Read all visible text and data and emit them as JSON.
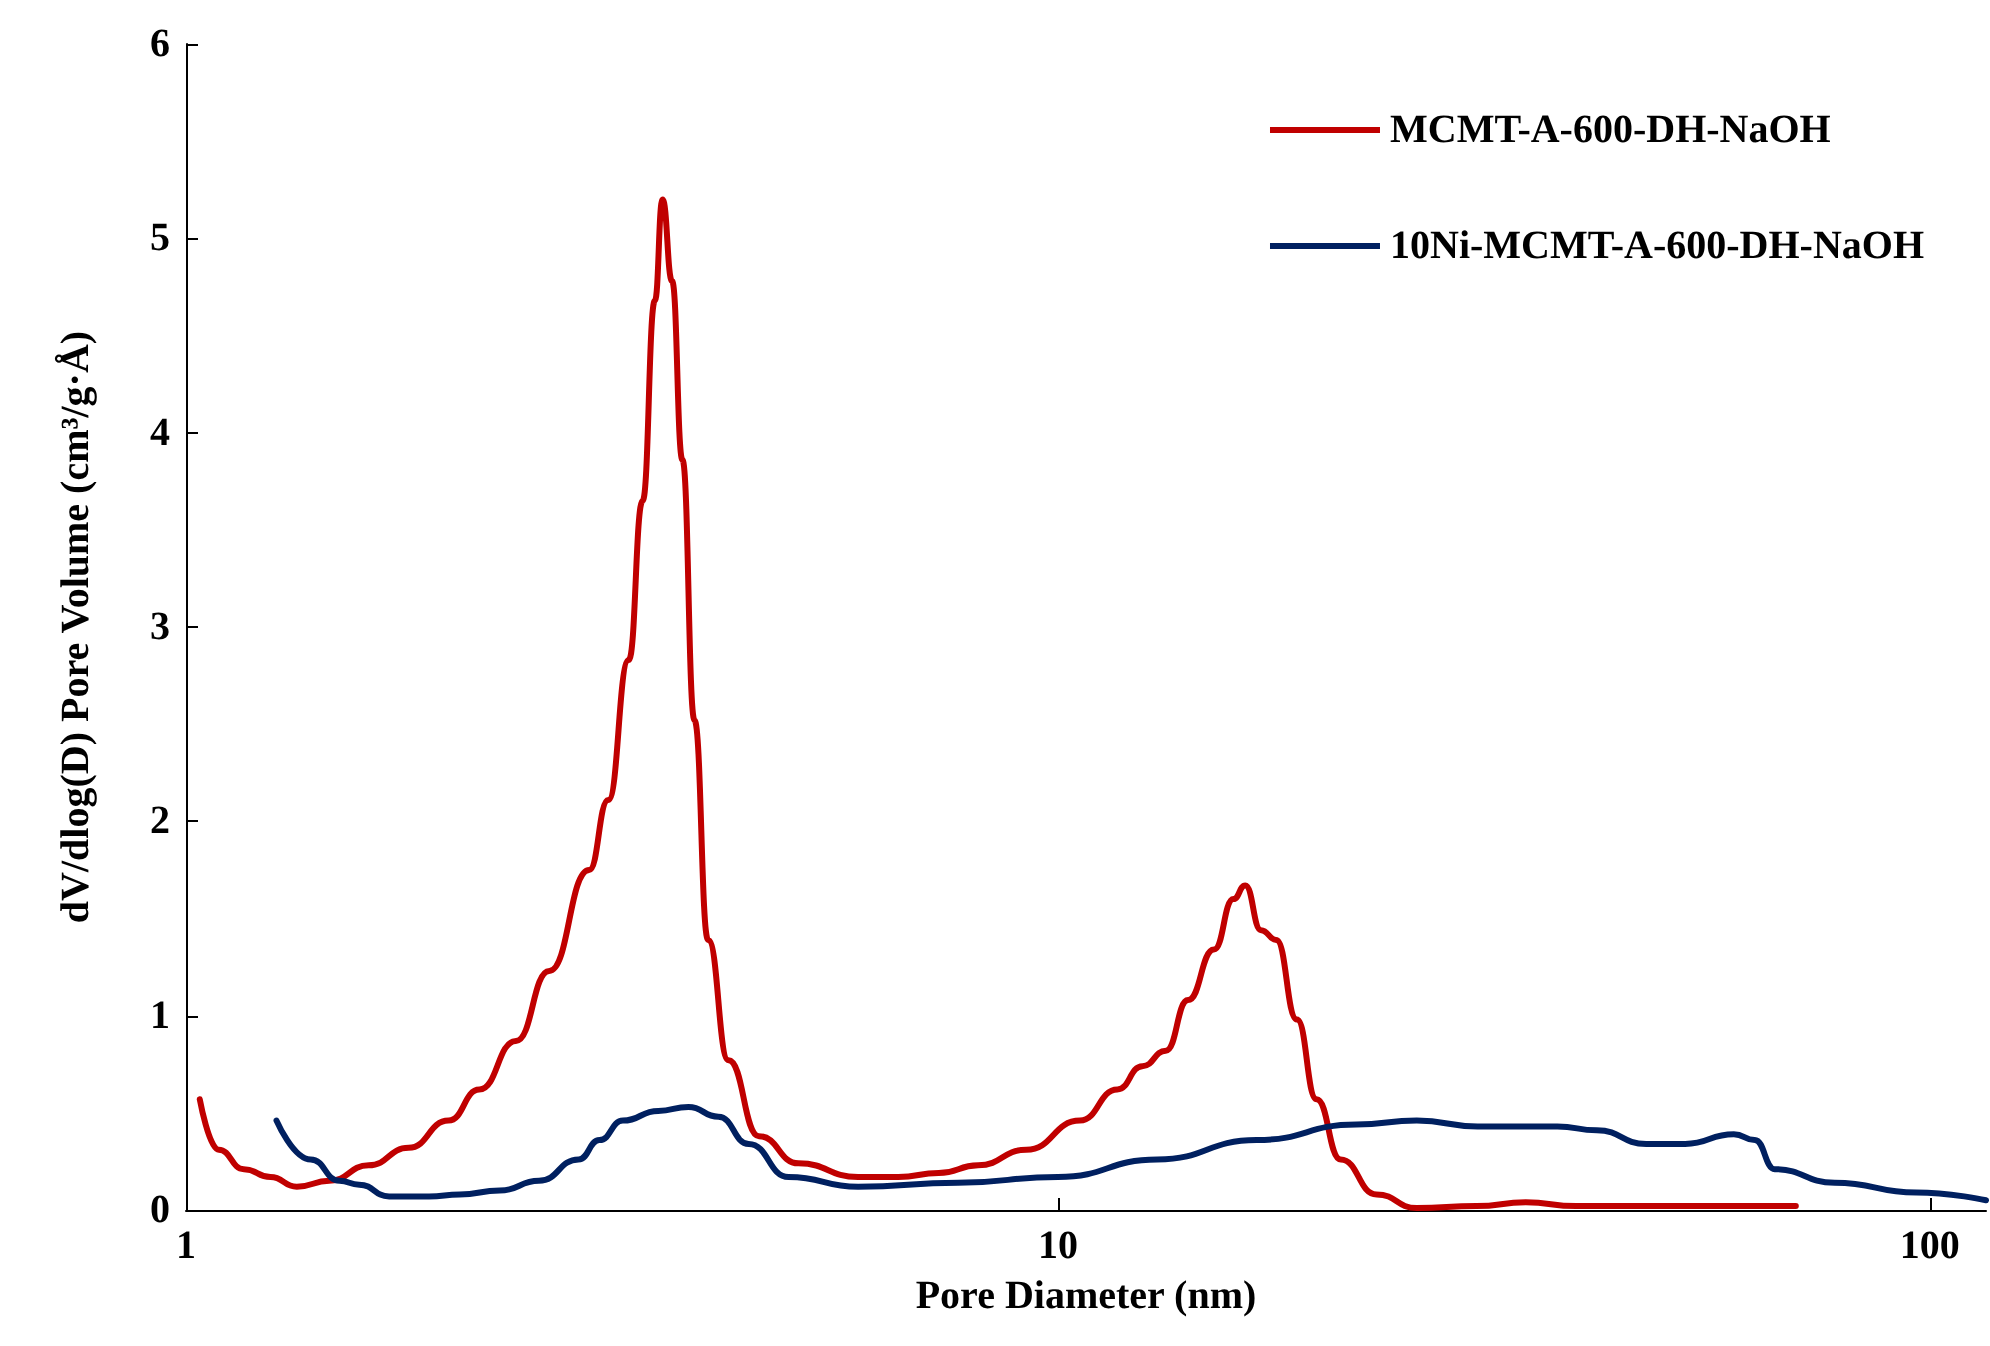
{
  "chart_data": {
    "type": "line",
    "xlabel": "Pore Diameter (nm)",
    "ylabel": "dV/dlog(D) Pore Volume (cm³/g·Å)",
    "log": "x",
    "xlim": [
      1,
      116
    ],
    "xticks": [
      1,
      10,
      100
    ],
    "ylim": [
      0,
      6
    ],
    "yticks": [
      0,
      1,
      2,
      3,
      4,
      5,
      6
    ],
    "grid": false,
    "legend": "top right",
    "marker": "none",
    "line_style": "solid",
    "series": [
      {
        "name": "MCMT-A-600-DH-NaOH",
        "color": "#c00000",
        "x": [
          1.037,
          1.09,
          1.165,
          1.25,
          1.34,
          1.46,
          1.62,
          1.8,
          2.0,
          2.17,
          2.39,
          2.61,
          2.9,
          3.05,
          3.22,
          3.34,
          3.45,
          3.52,
          3.61,
          3.71,
          3.83,
          3.97,
          4.19,
          4.54,
          5.04,
          5.9,
          6.56,
          7.3,
          8.1,
          9.2,
          10.6,
          11.7,
          12.5,
          13.3,
          14.1,
          15.1,
          15.9,
          16.4,
          17.1,
          17.8,
          18.8,
          19.8,
          21.1,
          23.2,
          25.8,
          30.2,
          34.4,
          39.3,
          54,
          70.2
        ],
        "values": [
          0.57,
          0.31,
          0.21,
          0.17,
          0.12,
          0.15,
          0.23,
          0.32,
          0.46,
          0.62,
          0.87,
          1.23,
          1.75,
          2.11,
          2.83,
          3.65,
          4.68,
          5.2,
          4.78,
          3.86,
          2.52,
          1.39,
          0.77,
          0.38,
          0.24,
          0.17,
          0.17,
          0.19,
          0.23,
          0.31,
          0.46,
          0.62,
          0.74,
          0.82,
          1.08,
          1.34,
          1.6,
          1.67,
          1.44,
          1.39,
          0.98,
          0.57,
          0.26,
          0.08,
          0.01,
          0.02,
          0.04,
          0.02,
          0.02,
          0.02
        ]
      },
      {
        "name": "10Ni-MCMT-A-600-DH-NaOH",
        "color": "#002060",
        "x": [
          1.27,
          1.39,
          1.5,
          1.58,
          1.71,
          1.9,
          2.06,
          2.29,
          2.54,
          2.82,
          2.98,
          3.17,
          3.48,
          3.77,
          4.08,
          4.42,
          4.91,
          5.9,
          7.68,
          10,
          13,
          16.9,
          22,
          25.8,
          30.3,
          37.4,
          41.5,
          47.3,
          52.4,
          59.6,
          63,
          66.4,
          77.8,
          96.5,
          116
        ],
        "values": [
          0.46,
          0.26,
          0.15,
          0.13,
          0.07,
          0.07,
          0.08,
          0.1,
          0.15,
          0.26,
          0.36,
          0.46,
          0.51,
          0.53,
          0.48,
          0.34,
          0.17,
          0.12,
          0.14,
          0.17,
          0.26,
          0.36,
          0.44,
          0.46,
          0.43,
          0.43,
          0.41,
          0.34,
          0.34,
          0.39,
          0.36,
          0.21,
          0.14,
          0.09,
          0.05
        ]
      }
    ]
  }
}
